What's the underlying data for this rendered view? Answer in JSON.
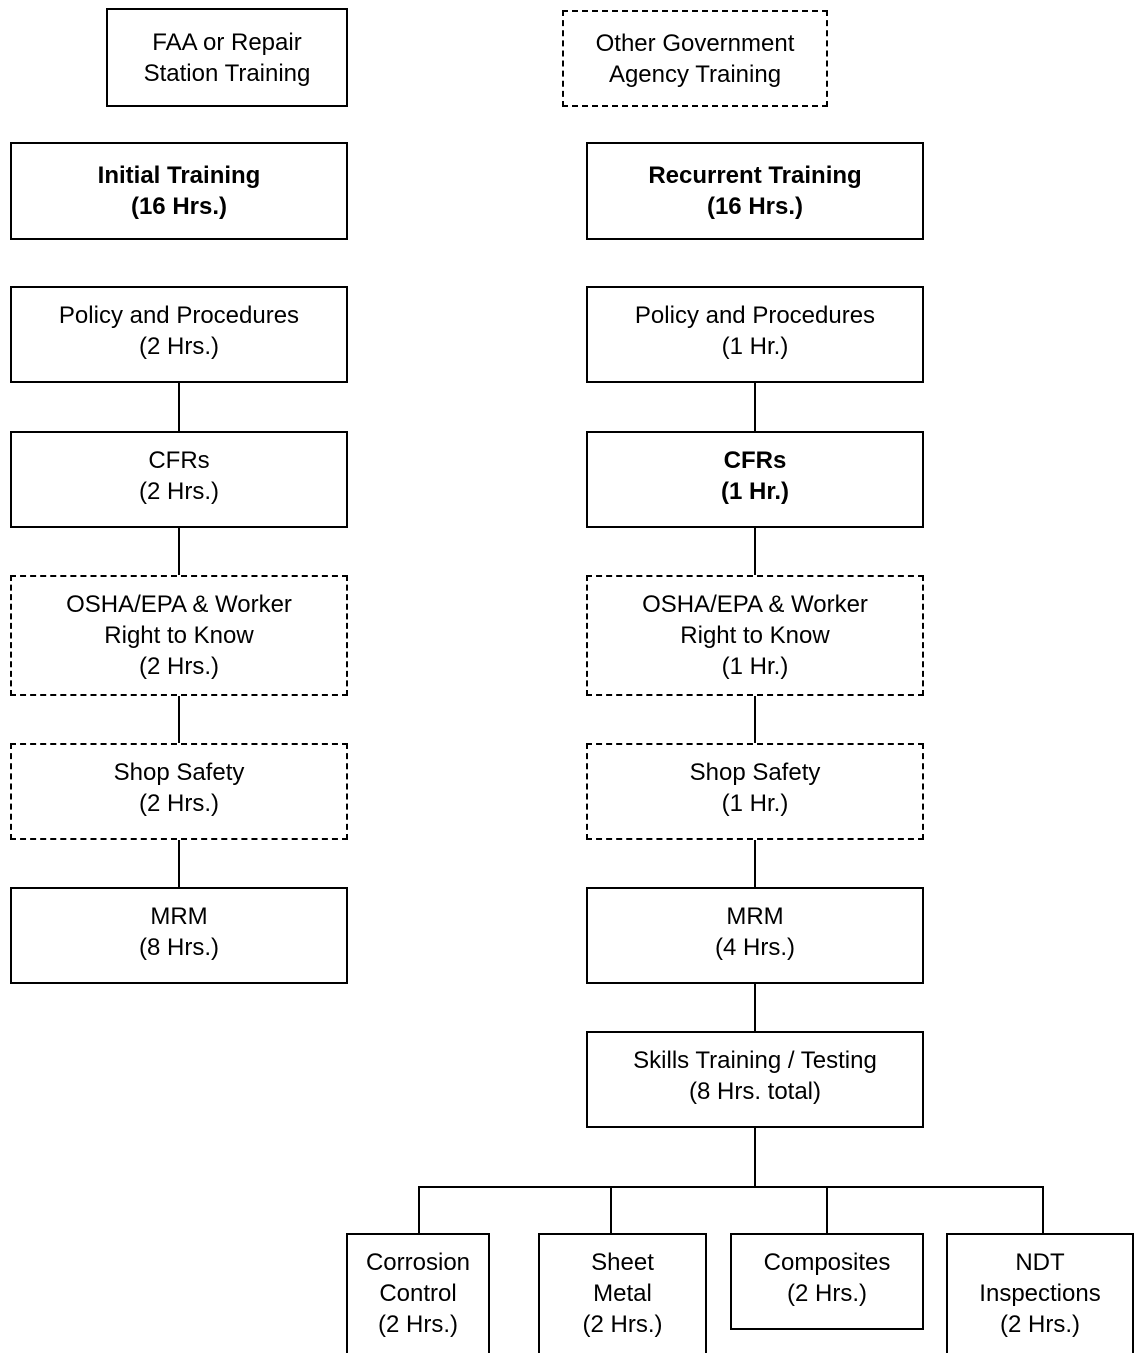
{
  "diagram": {
    "legend": {
      "faa": [
        "FAA or Repair",
        "Station Training"
      ],
      "other": [
        "Other Government",
        "Agency Training"
      ]
    },
    "initial": {
      "header": [
        "Initial Training",
        "(16 Hrs.)"
      ],
      "policy": [
        "Policy and Procedures",
        "(2 Hrs.)"
      ],
      "cfrs": [
        "CFRs",
        "(2 Hrs.)"
      ],
      "osha": [
        "OSHA/EPA & Worker",
        "Right to Know",
        "(2 Hrs.)"
      ],
      "shop": [
        "Shop Safety",
        "(2 Hrs.)"
      ],
      "mrm": [
        "MRM",
        "(8 Hrs.)"
      ]
    },
    "recurrent": {
      "header": [
        "Recurrent Training",
        "(16 Hrs.)"
      ],
      "policy": [
        "Policy and Procedures",
        "(1 Hr.)"
      ],
      "cfrs": [
        "CFRs",
        "(1 Hr.)"
      ],
      "osha": [
        "OSHA/EPA & Worker",
        "Right to Know",
        "(1 Hr.)"
      ],
      "shop": [
        "Shop Safety",
        "(1 Hr.)"
      ],
      "mrm": [
        "MRM",
        "(4 Hrs.)"
      ],
      "skills": [
        "Skills Training / Testing",
        "(8 Hrs. total)"
      ]
    },
    "skills_children": {
      "corrosion": [
        "Corrosion",
        "Control",
        "(2 Hrs.)"
      ],
      "sheet_metal": [
        "Sheet",
        "Metal",
        "(2 Hrs.)"
      ],
      "composites": [
        "Composites",
        "(2 Hrs.)"
      ],
      "ndt": [
        "NDT",
        "Inspections",
        "(2 Hrs.)"
      ]
    }
  }
}
